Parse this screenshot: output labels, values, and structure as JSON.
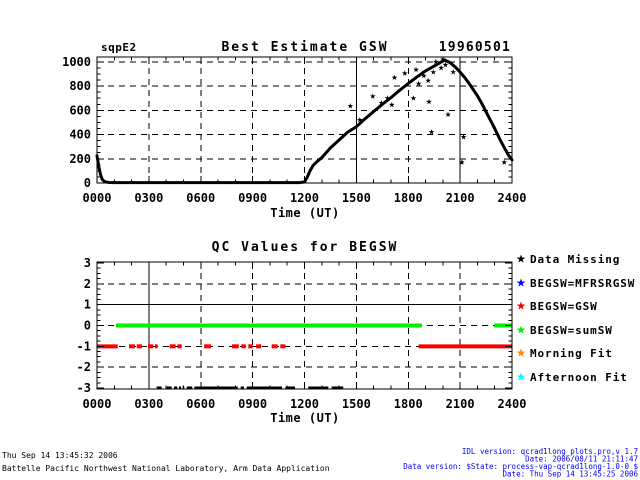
{
  "chart_data": [
    {
      "type": "scatter",
      "title": "Best Estimate GSW",
      "site_label": "sqpE2",
      "date_label": "19960501",
      "xlabel": "Time (UT)",
      "x_range": [
        0,
        24
      ],
      "y_range": [
        0,
        1040
      ],
      "x_tick_values": [
        0,
        3,
        6,
        9,
        12,
        15,
        18,
        21,
        24
      ],
      "x_tick_labels": [
        "0000",
        "0300",
        "0600",
        "0900",
        "1200",
        "1500",
        "1800",
        "2100",
        "2400"
      ],
      "y_tick_values": [
        0,
        200,
        400,
        600,
        800,
        1000
      ],
      "y_tick_labels": [
        "0",
        "200",
        "400",
        "600",
        "800",
        "1000"
      ],
      "x_minor_step": 1,
      "y_minor_step": 50,
      "grid_x_values": [
        3,
        6,
        9,
        12,
        15,
        18,
        21
      ],
      "grid_y_values": [
        200,
        400,
        600,
        800,
        1000
      ],
      "solid_grid_x": [
        15,
        21
      ],
      "solid_grid_y": [],
      "grid_style": "dashed",
      "series": [
        {
          "name": "best-estimate-gsw",
          "color": "#000000",
          "line_width": 3,
          "points": [
            [
              0,
              225
            ],
            [
              0.1,
              140
            ],
            [
              0.2,
              70
            ],
            [
              0.3,
              30
            ],
            [
              0.45,
              10
            ],
            [
              0.7,
              4
            ],
            [
              1,
              3
            ],
            [
              2,
              3
            ],
            [
              3,
              3
            ],
            [
              4,
              3
            ],
            [
              5,
              3
            ],
            [
              6,
              3
            ],
            [
              7,
              3
            ],
            [
              8,
              3
            ],
            [
              9,
              3
            ],
            [
              10,
              3
            ],
            [
              11,
              3
            ],
            [
              11.7,
              3
            ],
            [
              12.0,
              8
            ],
            [
              12.15,
              45
            ],
            [
              12.3,
              95
            ],
            [
              12.5,
              145
            ],
            [
              12.75,
              180
            ],
            [
              13,
              210
            ],
            [
              13.5,
              290
            ],
            [
              14,
              355
            ],
            [
              14.5,
              420
            ],
            [
              15,
              465
            ],
            [
              15.5,
              530
            ],
            [
              16,
              590
            ],
            [
              16.5,
              650
            ],
            [
              17,
              705
            ],
            [
              17.5,
              765
            ],
            [
              18,
              822
            ],
            [
              18.5,
              875
            ],
            [
              19,
              925
            ],
            [
              19.5,
              965
            ],
            [
              19.8,
              990
            ],
            [
              20.1,
              1015
            ],
            [
              20.4,
              995
            ],
            [
              20.7,
              960
            ],
            [
              21,
              915
            ],
            [
              21.3,
              865
            ],
            [
              21.6,
              805
            ],
            [
              22,
              720
            ],
            [
              22.3,
              645
            ],
            [
              22.6,
              560
            ],
            [
              23,
              450
            ],
            [
              23.3,
              360
            ],
            [
              23.6,
              280
            ],
            [
              23.8,
              230
            ],
            [
              24,
              190
            ]
          ]
        }
      ],
      "scatter_marker": "asterisk",
      "scatter": [
        [
          14.65,
          635
        ],
        [
          15.2,
          520
        ],
        [
          15.95,
          715
        ],
        [
          16.45,
          660
        ],
        [
          16.8,
          700
        ],
        [
          17.05,
          645
        ],
        [
          17.2,
          870
        ],
        [
          17.8,
          905
        ],
        [
          18.3,
          700
        ],
        [
          18.45,
          935
        ],
        [
          18.6,
          820
        ],
        [
          18.9,
          885
        ],
        [
          19.15,
          845
        ],
        [
          19.2,
          670
        ],
        [
          19.35,
          420
        ],
        [
          19.45,
          915
        ],
        [
          19.6,
          1000
        ],
        [
          19.9,
          950
        ],
        [
          20.0,
          1020
        ],
        [
          20.15,
          975
        ],
        [
          20.3,
          565
        ],
        [
          20.6,
          915
        ],
        [
          21.1,
          170
        ],
        [
          21.2,
          380
        ],
        [
          23.55,
          170
        ]
      ]
    },
    {
      "type": "segments",
      "title": "QC Values for BEGSW",
      "xlabel": "Time (UT)",
      "x_range": [
        0,
        24
      ],
      "y_range": [
        -3.05,
        3.05
      ],
      "x_tick_values": [
        0,
        3,
        6,
        9,
        12,
        15,
        18,
        21,
        24
      ],
      "x_tick_labels": [
        "0000",
        "0300",
        "0600",
        "0900",
        "1200",
        "1500",
        "1800",
        "2100",
        "2400"
      ],
      "y_tick_values": [
        -3,
        -2,
        -1,
        0,
        1,
        2,
        3
      ],
      "y_tick_labels": [
        "-3",
        "-2",
        "-1",
        "0",
        "1",
        "2",
        "3"
      ],
      "x_minor_step": 1,
      "y_minor_step": 0.25,
      "grid_x_values": [
        3,
        6,
        9,
        12,
        15,
        18,
        21
      ],
      "grid_y_values": [
        -2,
        -1,
        0,
        1,
        2
      ],
      "solid_grid_x": [
        3
      ],
      "solid_grid_y": [
        1
      ],
      "grid_style": "dashed",
      "segments": [
        {
          "name": "begsw-equals-sumsw",
          "color": "#00ee00",
          "y": 0,
          "line_width": 4,
          "ranges": [
            [
              1.1,
              18.78
            ],
            [
              22.97,
              24
            ]
          ]
        },
        {
          "name": "begsw-equals-gsw",
          "color": "#ff0000",
          "y": -1,
          "line_width": 4,
          "ranges": [
            [
              0,
              1.2
            ],
            [
              1.85,
              2.2
            ],
            [
              2.3,
              2.6
            ],
            [
              2.95,
              3.25
            ],
            [
              3.35,
              3.5
            ],
            [
              4.2,
              4.55
            ],
            [
              4.65,
              4.9
            ],
            [
              6.2,
              6.6
            ],
            [
              7.8,
              8.2
            ],
            [
              8.35,
              8.6
            ],
            [
              8.75,
              9.0
            ],
            [
              9.2,
              9.5
            ],
            [
              10.1,
              10.45
            ],
            [
              10.6,
              10.9
            ],
            [
              18.6,
              24
            ]
          ]
        },
        {
          "name": "data-missing",
          "color": "#000000",
          "y": -3.0,
          "line_width": 3,
          "ranges": [
            [
              3.45,
              3.74
            ],
            [
              4.03,
              4.32
            ],
            [
              4.45,
              4.64
            ],
            [
              4.74,
              4.86
            ],
            [
              4.95,
              5.05
            ],
            [
              5.19,
              5.51
            ],
            [
              5.63,
              8.14
            ],
            [
              8.31,
              8.5
            ],
            [
              8.66,
              10.7
            ],
            [
              10.9,
              11.45
            ],
            [
              12.22,
              13.38
            ],
            [
              13.57,
              14.24
            ]
          ]
        }
      ]
    }
  ],
  "legend": {
    "items": [
      {
        "label": "Data Missing",
        "color": "#000000"
      },
      {
        "label": "BEGSW=MFRSRGSW",
        "color": "#0000ff"
      },
      {
        "label": "BEGSW=GSW",
        "color": "#ff0000"
      },
      {
        "label": "BEGSW=sumSW",
        "color": "#00ee00"
      },
      {
        "label": "Morning Fit",
        "color": "#ff8800"
      },
      {
        "label": "Afternoon Fit",
        "color": "#00ffff"
      }
    ]
  },
  "footer": {
    "left_line1": "Thu Sep 14 13:45:32 2006",
    "left_line2": "Battelle Pacific Northwest National Laboratory, Arm Data Application",
    "right_color": "#0000ff",
    "right_lines": [
      "IDL version: qcrad1long_plots.pro,v 1.7",
      "Date: 2006/08/11 21:11:47",
      "Data version: $State: process-vap-qcrad1long-1.0-0 $",
      "Date: Thu Sep 14 13:45:25 2006"
    ]
  }
}
